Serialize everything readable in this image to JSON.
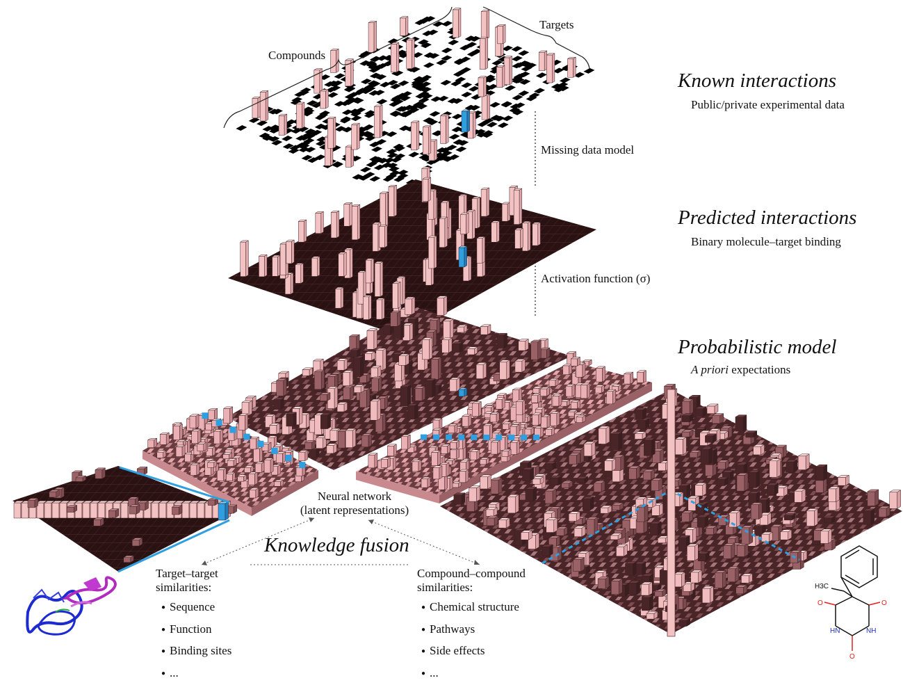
{
  "labels": {
    "compounds": "Compounds",
    "targets": "Targets",
    "missing_data_model": "Missing data model",
    "activation_function": "Activation function (σ)",
    "neural_network_line1": "Neural network",
    "neural_network_line2": "(latent representations)",
    "knowledge_fusion": "Knowledge fusion"
  },
  "layers": [
    {
      "title": "Known interactions",
      "subtitle": "Public/private experimental data"
    },
    {
      "title": "Predicted interactions",
      "subtitle": "Binary molecule–target binding"
    },
    {
      "title": "Probabilistic model",
      "subtitle_italic": "A priori",
      "subtitle_rest": " expectations"
    }
  ],
  "target_similarities": {
    "heading_line1": "Target–target",
    "heading_line2": "similarities:",
    "items": [
      "Sequence",
      "Function",
      "Binding sites",
      "..."
    ]
  },
  "compound_similarities": {
    "heading_line1": "Compound–compound",
    "heading_line2": "similarities:",
    "items": [
      "Chemical structure",
      "Pathways",
      "Side effects",
      "..."
    ]
  },
  "molecule": {
    "atoms": [
      "H3C",
      "O",
      "O",
      "O",
      "HN",
      "NH"
    ]
  },
  "colors": {
    "pink": "#f3c2c2",
    "dark": "#2a1213",
    "mid": "#7a4a4e",
    "blue": "#2e9fe0",
    "protein_blue": "#1d2ad0",
    "protein_magenta": "#b22bbf",
    "oxygen_red": "#e02020",
    "nitrogen_blue": "#2030c0"
  }
}
